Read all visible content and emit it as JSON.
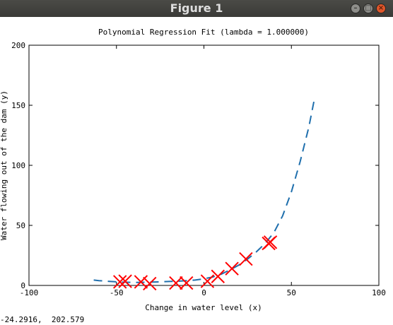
{
  "window": {
    "title": "Figure 1",
    "buttons": {
      "minimize_icon": "minimize-icon",
      "maximize_icon": "maximize-icon",
      "close_icon": "close-icon"
    }
  },
  "status": {
    "coordinate_readout": "-24.2916,  202.579"
  },
  "colors": {
    "fit_line": "#1f6fad",
    "markers": "#ff0000",
    "titlebar": "#3c3b37"
  },
  "chart_data": {
    "type": "scatter",
    "title": "Polynomial Regression Fit (lambda = 1.000000)",
    "xlabel": "Change in water level (x)",
    "ylabel": "Water flowing out of the dam (y)",
    "xlim": [
      -100,
      100
    ],
    "ylim": [
      0,
      200
    ],
    "xticks": [
      -100,
      -50,
      0,
      50,
      100
    ],
    "yticks": [
      0,
      50,
      100,
      150,
      200
    ],
    "grid": false,
    "series": [
      {
        "kind": "scatter",
        "marker": "x",
        "x": [
          -48,
          -45,
          -36,
          -31,
          -16,
          -10,
          2,
          8,
          16,
          24,
          37,
          38
        ],
        "y": [
          3,
          3.5,
          3,
          1.5,
          2,
          2,
          3.5,
          7.5,
          14,
          22,
          35,
          36
        ]
      },
      {
        "kind": "line",
        "style": "dashed",
        "x": [
          -63,
          -60,
          -55,
          -50,
          -45,
          -40,
          -35,
          -30,
          -25,
          -20,
          -15,
          -10,
          -5,
          0,
          5,
          10,
          15,
          20,
          25,
          30,
          35,
          40,
          45,
          50,
          55,
          60,
          63
        ],
        "y": [
          4.5,
          4,
          3.5,
          3,
          2.7,
          2.5,
          2.6,
          2.8,
          3,
          3.3,
          3.5,
          4,
          4.5,
          5.5,
          7,
          9.5,
          13,
          17,
          22,
          28,
          35,
          44,
          58,
          78,
          103,
          132,
          154
        ]
      }
    ]
  }
}
